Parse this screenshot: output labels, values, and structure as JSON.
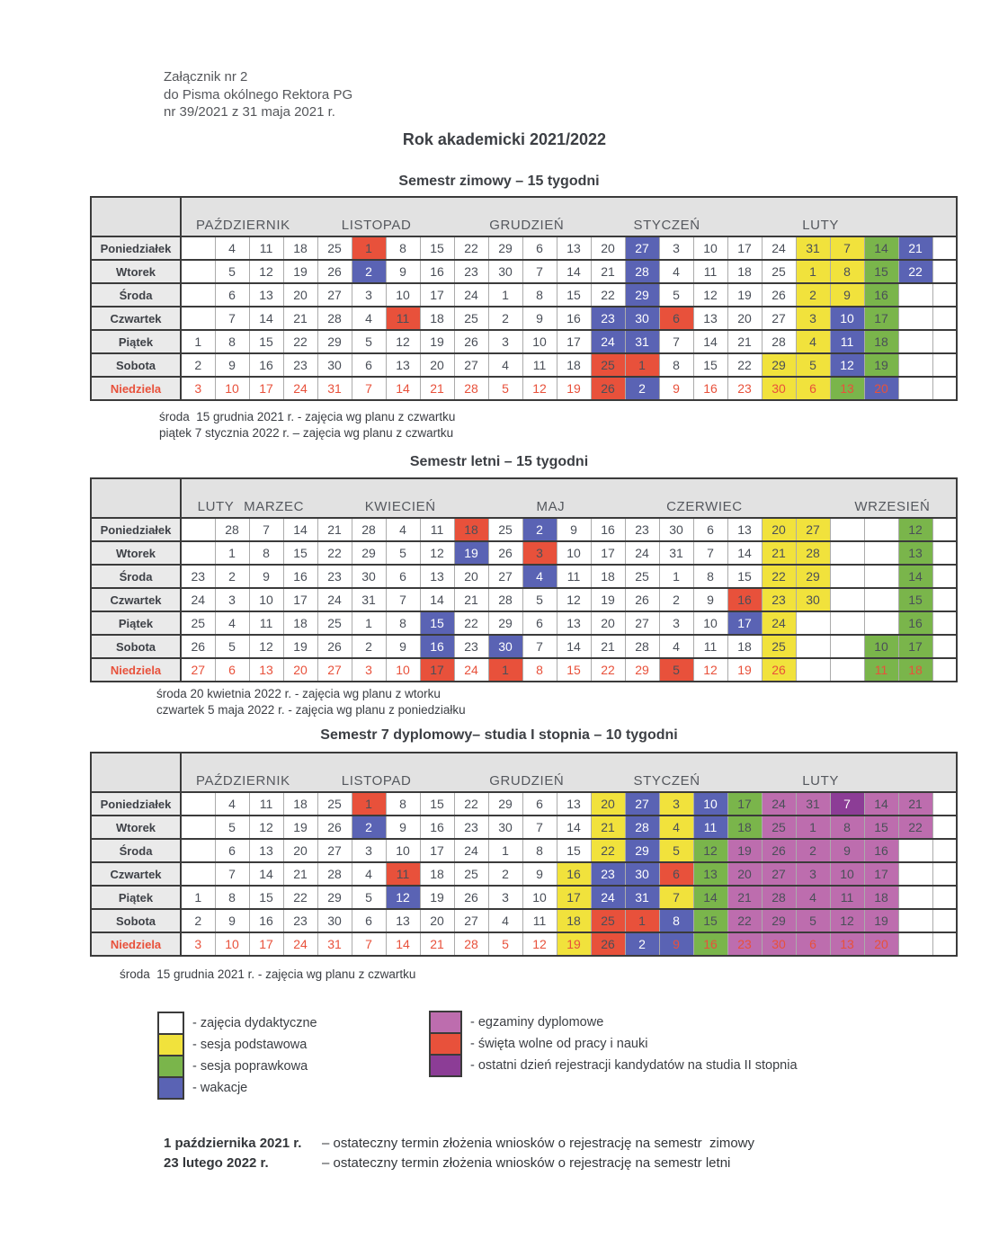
{
  "page": {
    "attachment_lines": [
      "Załącznik nr 2",
      "do Pisma okólnego Rektora PG",
      "nr 39/2021 z 31 maja 2021 r."
    ],
    "main_title": "Rok akademicki 2021/2022",
    "deadlines": [
      {
        "date": "1 października 2021 r.",
        "text": "– ostateczny termin złożenia wniosków o rejestrację na semestr  zimowy"
      },
      {
        "date": "23 lutego 2022 r.",
        "text": "– ostateczny termin złożenia wniosków o rejestrację na semestr letni"
      }
    ]
  },
  "colors": {
    "red": "#E8513B",
    "blue": "#5A63B4",
    "yellow": "#F1E23C",
    "green": "#7AB54B",
    "magenta": "#BD6DAE",
    "purple": "#8C3D96",
    "band_gray": "#E2E2E2",
    "label_gray": "#EAEAEA",
    "border_dark": "#3B3B3B",
    "border_light": "#ABABAB",
    "cell_text": "#4A4F58",
    "sunday_text": "#E8513B",
    "month_text": "#55585E"
  },
  "day_labels": [
    "Poniedziałek",
    "Wtorek",
    "Środa",
    "Czwartek",
    "Piątek",
    "Sobota",
    "Niedziela"
  ],
  "tables": [
    {
      "title": "Semestr zimowy – 15 tygodni",
      "months": [
        {
          "label": "PAŹDZIERNIK",
          "center_col": 2.3
        },
        {
          "label": "LISTOPAD",
          "center_col": 6.2
        },
        {
          "label": "GRUDZIEŃ",
          "center_col": 10.6
        },
        {
          "label": "STYCZEŃ",
          "center_col": 14.7
        },
        {
          "label": "LUTY",
          "center_col": 19.2
        }
      ],
      "rows": [
        [
          "",
          "4",
          "11",
          "18",
          "25",
          "1:R",
          "8",
          "15",
          "22",
          "29",
          "6",
          "13",
          "20",
          "27:B",
          "3",
          "10",
          "17",
          "24",
          "31:Y",
          "7:Y",
          "14:G",
          "21:B",
          ""
        ],
        [
          "",
          "5",
          "12",
          "19",
          "26",
          "2:B",
          "9",
          "16",
          "23",
          "30",
          "7",
          "14",
          "21",
          "28:B",
          "4",
          "11",
          "18",
          "25",
          "1:Y",
          "8:Y",
          "15:G",
          "22:B",
          ""
        ],
        [
          "",
          "6",
          "13",
          "20",
          "27",
          "3",
          "10",
          "17",
          "24",
          "1",
          "8",
          "15",
          "22",
          "29:B",
          "5",
          "12",
          "19",
          "26",
          "2:Y",
          "9:Y",
          "16:G",
          "",
          ""
        ],
        [
          "",
          "7",
          "14",
          "21",
          "28",
          "4",
          "11:R",
          "18",
          "25",
          "2",
          "9",
          "16",
          "23:B",
          "30:B",
          "6:R",
          "13",
          "20",
          "27",
          "3:Y",
          "10:B",
          "17:G",
          "",
          ""
        ],
        [
          "1",
          "8",
          "15",
          "22",
          "29",
          "5",
          "12",
          "19",
          "26",
          "3",
          "10",
          "17",
          "24:B",
          "31:B",
          "7",
          "14",
          "21",
          "28",
          "4:Y",
          "11:B",
          "18:G",
          "",
          ""
        ],
        [
          "2",
          "9",
          "16",
          "23",
          "30",
          "6",
          "13",
          "20",
          "27",
          "4",
          "11",
          "18",
          "25:R",
          "1:R",
          "8",
          "15",
          "22",
          "29:Y",
          "5:Y",
          "12:B",
          "19:G",
          "",
          ""
        ],
        [
          "3",
          "10",
          "17",
          "24",
          "31",
          "7",
          "14",
          "21",
          "28",
          "5",
          "12",
          "19",
          "26:R",
          "2:B:w",
          "9",
          "16",
          "23",
          "30:Y",
          "6:Y",
          "13:G",
          "20:B",
          "",
          ""
        ]
      ],
      "notes": [
        "środa  15 grudnia 2021 r. - zajęcia wg planu z czwartku",
        "piątek 7 stycznia 2022 r. – zajęcia wg planu z czwartku"
      ]
    },
    {
      "title": "Semestr letni – 15 tygodni",
      "months": [
        {
          "label": "LUTY",
          "center_col": 1.5
        },
        {
          "label": "MARZEC",
          "center_col": 3.2
        },
        {
          "label": "KWIECIEŃ",
          "center_col": 6.9
        },
        {
          "label": "MAJ",
          "center_col": 11.3
        },
        {
          "label": "CZERWIEC",
          "center_col": 15.8
        },
        {
          "label": "WRZESIEŃ",
          "center_col": 21.3
        }
      ],
      "rows": [
        [
          "",
          "28",
          "7",
          "14",
          "21",
          "28",
          "4",
          "11",
          "18:R",
          "25",
          "2:B",
          "9",
          "16",
          "23",
          "30",
          "6",
          "13",
          "20:Y",
          "27:Y",
          "",
          "",
          "12:G",
          ""
        ],
        [
          "",
          "1",
          "8",
          "15",
          "22",
          "29",
          "5",
          "12",
          "19:B",
          "26",
          "3:R",
          "10",
          "17",
          "24",
          "31",
          "7",
          "14",
          "21:Y",
          "28:Y",
          "",
          "",
          "13:G",
          ""
        ],
        [
          "23",
          "2",
          "9",
          "16",
          "23",
          "30",
          "6",
          "13",
          "20",
          "27",
          "4:B",
          "11",
          "18",
          "25",
          "1",
          "8",
          "15",
          "22:Y",
          "29:Y",
          "",
          "",
          "14:G",
          ""
        ],
        [
          "24",
          "3",
          "10",
          "17",
          "24",
          "31",
          "7",
          "14",
          "21",
          "28",
          "5",
          "12",
          "19",
          "26",
          "2",
          "9",
          "16:R",
          "23:Y",
          "30:Y",
          "",
          "",
          "15:G",
          ""
        ],
        [
          "25",
          "4",
          "11",
          "18",
          "25",
          "1",
          "8",
          "15:B",
          "22",
          "29",
          "6",
          "13",
          "20",
          "27",
          "3",
          "10",
          "17:B",
          "24:Y",
          "",
          "",
          "",
          "16:G",
          ""
        ],
        [
          "26",
          "5",
          "12",
          "19",
          "26",
          "2",
          "9",
          "16:B",
          "23",
          "30:B",
          "7",
          "14",
          "21",
          "28",
          "4",
          "11",
          "18",
          "25:Y",
          "",
          "",
          "10:G",
          "17:G",
          ""
        ],
        [
          "27",
          "6",
          "13",
          "20",
          "27",
          "3",
          "10",
          "17:R",
          "24",
          "1:R",
          "8",
          "15",
          "22",
          "29",
          "5:R",
          "12",
          "19",
          "26:Y",
          "",
          "",
          "11:G",
          "18:G",
          ""
        ]
      ],
      "notes": [
        "środa 20 kwietnia 2022 r. - zajęcia wg planu z wtorku",
        "czwartek 5 maja 2022 r. - zajęcia wg planu z poniedziałku"
      ]
    },
    {
      "title": "Semestr 7 dyplomowy– studia I stopnia – 10 tygodni",
      "months": [
        {
          "label": "PAŹDZIERNIK",
          "center_col": 2.3
        },
        {
          "label": "LISTOPAD",
          "center_col": 6.2
        },
        {
          "label": "GRUDZIEŃ",
          "center_col": 10.6
        },
        {
          "label": "STYCZEŃ",
          "center_col": 14.7
        },
        {
          "label": "LUTY",
          "center_col": 19.2
        }
      ],
      "rows": [
        [
          "",
          "4",
          "11",
          "18",
          "25",
          "1:R",
          "8",
          "15",
          "22",
          "29",
          "6",
          "13",
          "20:Y",
          "27:B",
          "3:Y",
          "10:B",
          "17:G",
          "24:M",
          "31:M",
          "7:P",
          "14:M",
          "21:M",
          ""
        ],
        [
          "",
          "5",
          "12",
          "19",
          "26",
          "2:B",
          "9",
          "16",
          "23",
          "30",
          "7",
          "14",
          "21:Y",
          "28:B",
          "4:Y",
          "11:B",
          "18:G",
          "25:M",
          "1:M",
          "8:M",
          "15:M",
          "22:M",
          ""
        ],
        [
          "",
          "6",
          "13",
          "20",
          "27",
          "3",
          "10",
          "17",
          "24",
          "1",
          "8",
          "15",
          "22:Y",
          "29:B",
          "5:Y",
          "12:G",
          "19:M",
          "26:M",
          "2:M",
          "9:M",
          "16:M",
          "",
          ""
        ],
        [
          "",
          "7",
          "14",
          "21",
          "28",
          "4",
          "11:R",
          "18",
          "25",
          "2",
          "9",
          "16:Y",
          "23:B",
          "30:B",
          "6:R",
          "13:G",
          "20:M",
          "27:M",
          "3:M",
          "10:M",
          "17:M",
          "",
          ""
        ],
        [
          "1",
          "8",
          "15",
          "22",
          "29",
          "5",
          "12:B",
          "19",
          "26",
          "3",
          "10",
          "17:Y",
          "24:B",
          "31:B",
          "7:Y",
          "14:G",
          "21:M",
          "28:M",
          "4:M",
          "11:M",
          "18:M",
          "",
          ""
        ],
        [
          "2",
          "9",
          "16",
          "23",
          "30",
          "6",
          "13",
          "20",
          "27",
          "4",
          "11",
          "18:Y",
          "25:R",
          "1:R",
          "8:B",
          "15:G",
          "22:M",
          "29:M",
          "5:M",
          "12:M",
          "19:M",
          "",
          ""
        ],
        [
          "3",
          "10",
          "17",
          "24",
          "31",
          "7",
          "14",
          "21",
          "28",
          "5",
          "12",
          "19:Y",
          "26:R",
          "2:B:w",
          "9:B",
          "16:G",
          "23:M",
          "30:M",
          "6:M",
          "13:M",
          "20:M",
          "",
          ""
        ]
      ],
      "notes": [
        "środa  15 grudnia 2021 r. - zajęcia wg planu z czwartku"
      ]
    }
  ],
  "legend": {
    "left": [
      {
        "swatch": "#FFFFFF",
        "label": "- zajęcia dydaktyczne"
      },
      {
        "swatch": "#F1E23C",
        "label": "- sesja podstawowa"
      },
      {
        "swatch": "#7AB54B",
        "label": "- sesja poprawkowa"
      },
      {
        "swatch": "#5A63B4",
        "label": "- wakacje"
      }
    ],
    "right": [
      {
        "swatch": "#BD6DAE",
        "label": "- egzaminy dyplomowe"
      },
      {
        "swatch": "#E8513B",
        "label": "- święta wolne od pracy i nauki"
      },
      {
        "swatch": "#8C3D96",
        "label": "- ostatni dzień rejestracji kandydatów na studia II stopnia"
      }
    ]
  }
}
